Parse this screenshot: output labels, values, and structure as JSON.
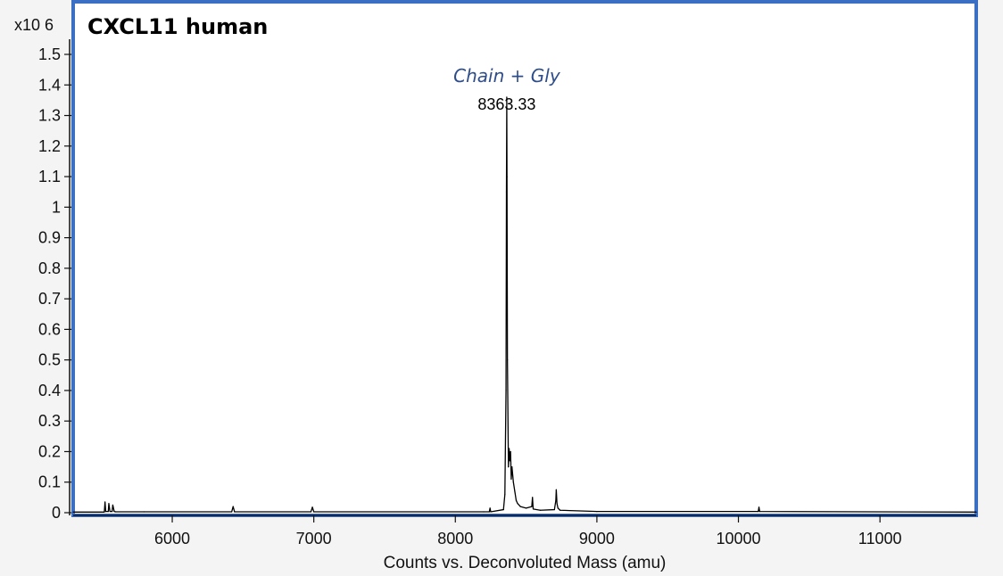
{
  "chart_data": {
    "type": "line",
    "title": "CXCL11 human",
    "xlabel": "Counts vs. Deconvoluted Mass (amu)",
    "ylabel": "",
    "y_multiplier": "x10 6",
    "xlim": [
      5300,
      11680
    ],
    "ylim": [
      0,
      1.5
    ],
    "x_ticks": [
      "6000",
      "7000",
      "8000",
      "9000",
      "10000",
      "11000"
    ],
    "y_ticks": [
      "1.5",
      "1.4",
      "1.3",
      "1.2",
      "1.1",
      "1",
      "0.9",
      "0.8",
      "0.7",
      "0.6",
      "0.5",
      "0.4",
      "0.3",
      "0.2",
      "0.1",
      "0"
    ],
    "grid": false,
    "annotations": [
      {
        "text": "Chain + Gly",
        "x": 8363.33,
        "y": 1.45
      },
      {
        "text": "8363.33",
        "x": 8363.33,
        "y": 1.36
      }
    ],
    "series": [
      {
        "color": "#000000",
        "x": [
          5300,
          5520,
          5525,
          5530,
          5548,
          5552,
          5560,
          5575,
          5580,
          5590,
          5600,
          5800,
          6420,
          6430,
          6440,
          6980,
          6990,
          7000,
          8200,
          8240,
          8245,
          8250,
          8340,
          8350,
          8358,
          8361,
          8363.33,
          8365,
          8368,
          8375,
          8380,
          8385,
          8390,
          8395,
          8400,
          8410,
          8420,
          8430,
          8440,
          8460,
          8500,
          8540,
          8545,
          8550,
          8600,
          8700,
          8710,
          8713,
          8718,
          8725,
          8740,
          9000,
          10140,
          10145,
          10150,
          11680
        ],
        "y": [
          0.002,
          0.002,
          0.035,
          0.004,
          0.004,
          0.03,
          0.004,
          0.004,
          0.025,
          0.004,
          0.003,
          0.003,
          0.003,
          0.02,
          0.003,
          0.003,
          0.018,
          0.003,
          0.003,
          0.003,
          0.015,
          0.003,
          0.01,
          0.06,
          0.4,
          1.05,
          1.36,
          1.1,
          0.5,
          0.15,
          0.21,
          0.17,
          0.2,
          0.11,
          0.15,
          0.1,
          0.07,
          0.04,
          0.03,
          0.02,
          0.015,
          0.02,
          0.05,
          0.012,
          0.008,
          0.01,
          0.04,
          0.075,
          0.03,
          0.015,
          0.008,
          0.004,
          0.004,
          0.018,
          0.004,
          0.002
        ]
      }
    ]
  }
}
